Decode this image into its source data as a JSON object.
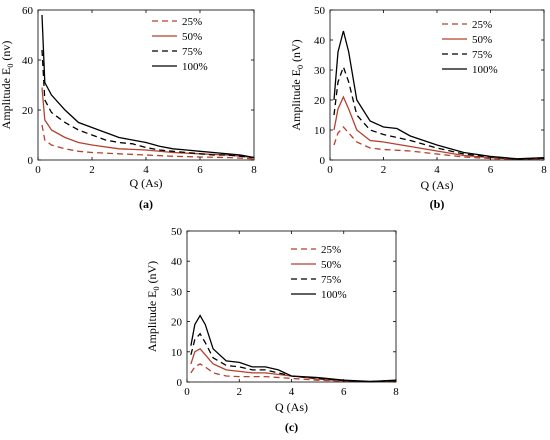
{
  "chart_data": [
    {
      "type": "line",
      "panel_label": "(a)",
      "xlabel": "Q (As)",
      "ylabel": "Amplitude E",
      "ylabel_subscript": "0",
      "ylabel_unit": " (nv)",
      "xlim": [
        0,
        8
      ],
      "ylim": [
        0,
        60
      ],
      "xticks": [
        0,
        2,
        4,
        6,
        8
      ],
      "yticks": [
        0,
        20,
        40,
        60
      ],
      "legend_position": "top-right",
      "series": [
        {
          "name": "25%",
          "color": "#b5412f",
          "dash": "dashed",
          "x": [
            0.15,
            0.25,
            0.5,
            1,
            1.5,
            2,
            3,
            4,
            5,
            6,
            7,
            8
          ],
          "y": [
            14,
            8,
            6,
            4.5,
            3.5,
            3,
            2.5,
            2,
            1.5,
            1.2,
            1,
            0.5
          ]
        },
        {
          "name": "50%",
          "color": "#b5412f",
          "dash": "solid",
          "x": [
            0.15,
            0.25,
            0.5,
            1,
            1.5,
            2,
            3,
            4,
            5,
            6,
            7,
            8
          ],
          "y": [
            29,
            16,
            12,
            9,
            7,
            6,
            4.5,
            4,
            3,
            2.5,
            2,
            1
          ]
        },
        {
          "name": "75%",
          "color": "#000000",
          "dash": "dashed",
          "x": [
            0.15,
            0.25,
            0.5,
            1,
            1.5,
            2,
            2.5,
            3,
            3.5,
            4,
            4.5,
            5,
            5.5,
            6,
            6.5,
            7,
            7.5,
            8
          ],
          "y": [
            44,
            24,
            19,
            15,
            12,
            10,
            8,
            7,
            6.5,
            5,
            4,
            3.5,
            3,
            2.5,
            2,
            2,
            1.5,
            1
          ]
        },
        {
          "name": "100%",
          "color": "#000000",
          "dash": "solid",
          "x": [
            0.15,
            0.25,
            0.5,
            1,
            1.5,
            2,
            2.5,
            3,
            3.5,
            4,
            4.5,
            5,
            5.5,
            6,
            6.5,
            7,
            7.5,
            8
          ],
          "y": [
            58,
            31,
            26,
            20,
            15,
            13,
            11,
            9,
            8,
            7,
            5.5,
            4.5,
            4,
            3.5,
            3,
            2.5,
            2,
            1
          ]
        }
      ]
    },
    {
      "type": "line",
      "panel_label": "(b)",
      "xlabel": "Q (As)",
      "ylabel": "Amplitude E",
      "ylabel_subscript": "0",
      "ylabel_unit": " (nV)",
      "xlim": [
        0,
        8
      ],
      "ylim": [
        0,
        50
      ],
      "xticks": [
        0,
        2,
        4,
        6,
        8
      ],
      "yticks": [
        0,
        10,
        20,
        30,
        40,
        50
      ],
      "legend_position": "top-right",
      "series": [
        {
          "name": "25%",
          "color": "#b5412f",
          "dash": "dashed",
          "x": [
            0.15,
            0.3,
            0.5,
            0.7,
            1,
            1.5,
            2,
            3,
            4,
            5,
            6,
            7,
            8
          ],
          "y": [
            5,
            9,
            11,
            9,
            6,
            4,
            3.5,
            3,
            2,
            1,
            0.5,
            0.2,
            0.3
          ]
        },
        {
          "name": "50%",
          "color": "#b5412f",
          "dash": "solid",
          "x": [
            0.15,
            0.3,
            0.5,
            0.7,
            1,
            1.5,
            2,
            3,
            4,
            5,
            6,
            7,
            8
          ],
          "y": [
            10,
            17,
            21,
            17,
            10,
            6.5,
            6,
            4.5,
            3,
            1.5,
            0.8,
            0.2,
            0.5
          ]
        },
        {
          "name": "75%",
          "color": "#000000",
          "dash": "dashed",
          "x": [
            0.15,
            0.3,
            0.5,
            0.7,
            1,
            1.5,
            2,
            3,
            4,
            5,
            6,
            7,
            8
          ],
          "y": [
            15,
            26,
            31,
            26,
            15,
            10,
            8.5,
            6.5,
            4,
            2,
            1,
            0.3,
            0.6
          ]
        },
        {
          "name": "100%",
          "color": "#000000",
          "dash": "solid",
          "x": [
            0.15,
            0.3,
            0.5,
            0.7,
            1,
            1.5,
            2,
            2.5,
            3,
            4,
            5,
            6,
            7,
            8
          ],
          "y": [
            20,
            36,
            43,
            36,
            20,
            13,
            11,
            10.5,
            8,
            5,
            2.5,
            1.2,
            0.4,
            0.8
          ]
        }
      ]
    },
    {
      "type": "line",
      "panel_label": "(c)",
      "xlabel": "Q (As)",
      "ylabel": "Amplitude E",
      "ylabel_subscript": "0",
      "ylabel_unit": " (nV)",
      "xlim": [
        0,
        8
      ],
      "ylim": [
        0,
        50
      ],
      "xticks": [
        0,
        2,
        4,
        6,
        8
      ],
      "yticks": [
        0,
        10,
        20,
        30,
        40,
        50
      ],
      "legend_position": "top-right",
      "series": [
        {
          "name": "25%",
          "color": "#b5412f",
          "dash": "dashed",
          "x": [
            0.15,
            0.3,
            0.5,
            0.7,
            1,
            1.5,
            2,
            3,
            4,
            5,
            6,
            7,
            8
          ],
          "y": [
            3,
            5,
            6,
            5,
            3,
            2,
            1.8,
            1.8,
            1.2,
            0.6,
            0.3,
            0.1,
            0.3
          ]
        },
        {
          "name": "50%",
          "color": "#b5412f",
          "dash": "solid",
          "x": [
            0.15,
            0.3,
            0.5,
            0.7,
            1,
            1.5,
            2,
            2.5,
            3,
            4,
            5,
            6,
            7,
            8
          ],
          "y": [
            6,
            10,
            11,
            9,
            6,
            4,
            3.5,
            3,
            3,
            2,
            1,
            0.4,
            0.1,
            0.4
          ]
        },
        {
          "name": "75%",
          "color": "#000000",
          "dash": "dashed",
          "x": [
            0.15,
            0.3,
            0.5,
            0.7,
            1,
            1.5,
            2,
            2.5,
            3,
            4,
            5,
            6,
            7,
            8
          ],
          "y": [
            9,
            14,
            16,
            13,
            8,
            5.5,
            5,
            4,
            4,
            2,
            1.2,
            0.5,
            0.1,
            0.5
          ]
        },
        {
          "name": "100%",
          "color": "#000000",
          "dash": "solid",
          "x": [
            0.15,
            0.3,
            0.5,
            0.7,
            1,
            1.5,
            2,
            2.5,
            3,
            3.5,
            4,
            5,
            6,
            7,
            8
          ],
          "y": [
            12,
            19,
            22,
            19,
            11,
            7,
            6.5,
            5,
            5,
            4,
            2,
            1.5,
            0.6,
            0.2,
            0.6
          ]
        }
      ]
    }
  ]
}
